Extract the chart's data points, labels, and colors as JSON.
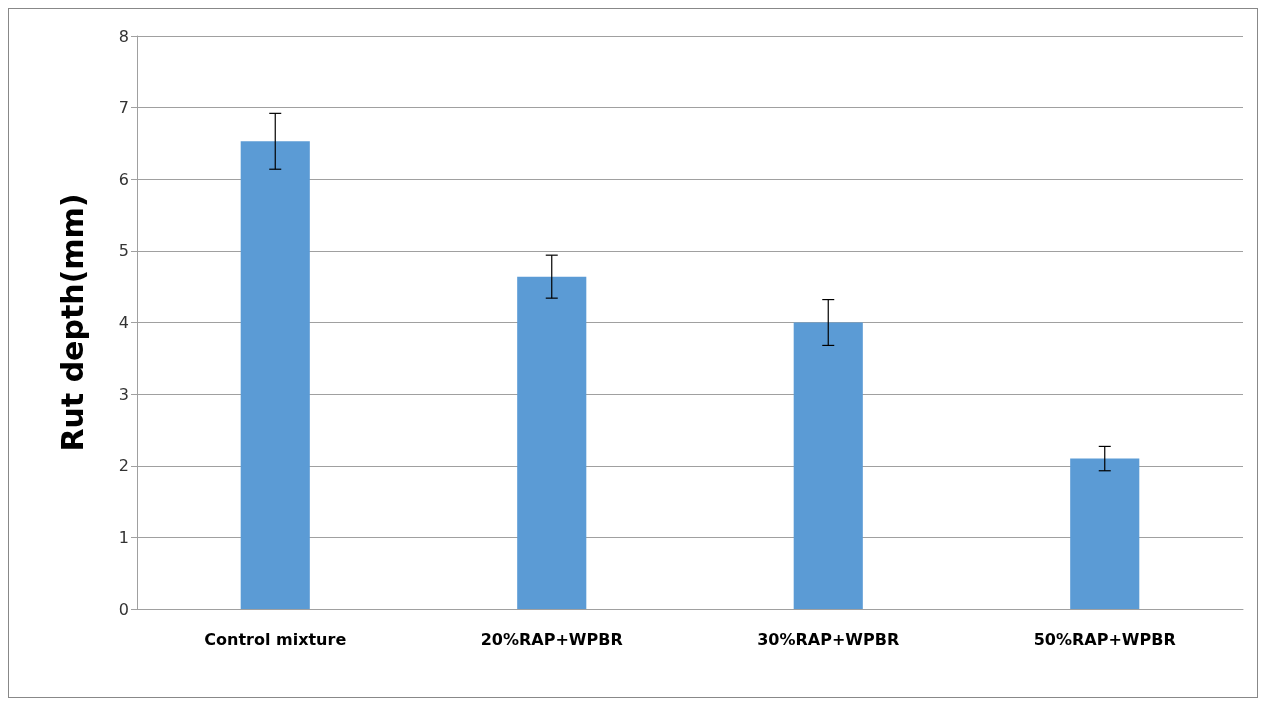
{
  "chart_data": {
    "type": "bar",
    "ylabel": "Rut depth(mm)",
    "categories": [
      "Control mixture",
      "20%RAP+WPBR",
      "30%RAP+WPBR",
      "50%RAP+WPBR"
    ],
    "values": [
      6.53,
      4.64,
      4.0,
      2.1
    ],
    "errors": [
      0.39,
      0.3,
      0.32,
      0.17
    ],
    "color": "#5b9bd5",
    "ylim": [
      0,
      8
    ],
    "yticks": [
      0,
      1,
      2,
      3,
      4,
      5,
      6,
      7,
      8
    ],
    "grid": "y"
  }
}
